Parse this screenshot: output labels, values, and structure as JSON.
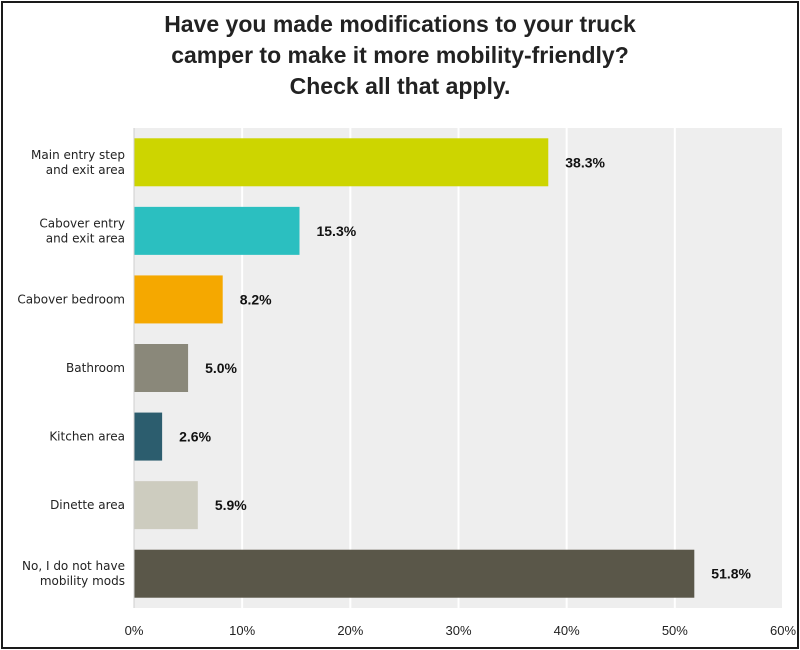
{
  "chart_data": {
    "type": "bar",
    "orientation": "horizontal",
    "title_lines": [
      "Have you made modifications to your truck",
      "camper to make it more mobility-friendly?",
      "Check all that apply."
    ],
    "categories": [
      "Main entry step\nand exit area",
      "Cabover entry\nand exit area",
      "Cabover bedroom",
      "Bathroom",
      "Kitchen area",
      "Dinette area",
      "No, I do not have\nmobility mods"
    ],
    "values": [
      38.3,
      15.3,
      8.2,
      5.0,
      2.6,
      5.9,
      51.8
    ],
    "value_labels": [
      "38.3%",
      "15.3%",
      "8.2%",
      "5.0%",
      "2.6%",
      "5.9%",
      "51.8%"
    ],
    "bar_colors": [
      "#cdd500",
      "#2bbfc0",
      "#f5a800",
      "#8a887a",
      "#2c5d6e",
      "#cdccbf",
      "#5a5749"
    ],
    "xlim": [
      0,
      60
    ],
    "xticks": [
      0,
      10,
      20,
      30,
      40,
      50,
      60
    ],
    "xtick_labels": [
      "0%",
      "10%",
      "20%",
      "30%",
      "40%",
      "50%",
      "60%"
    ],
    "grid": true,
    "plot_background": "#eeeeee",
    "grid_color": "#ffffff"
  }
}
